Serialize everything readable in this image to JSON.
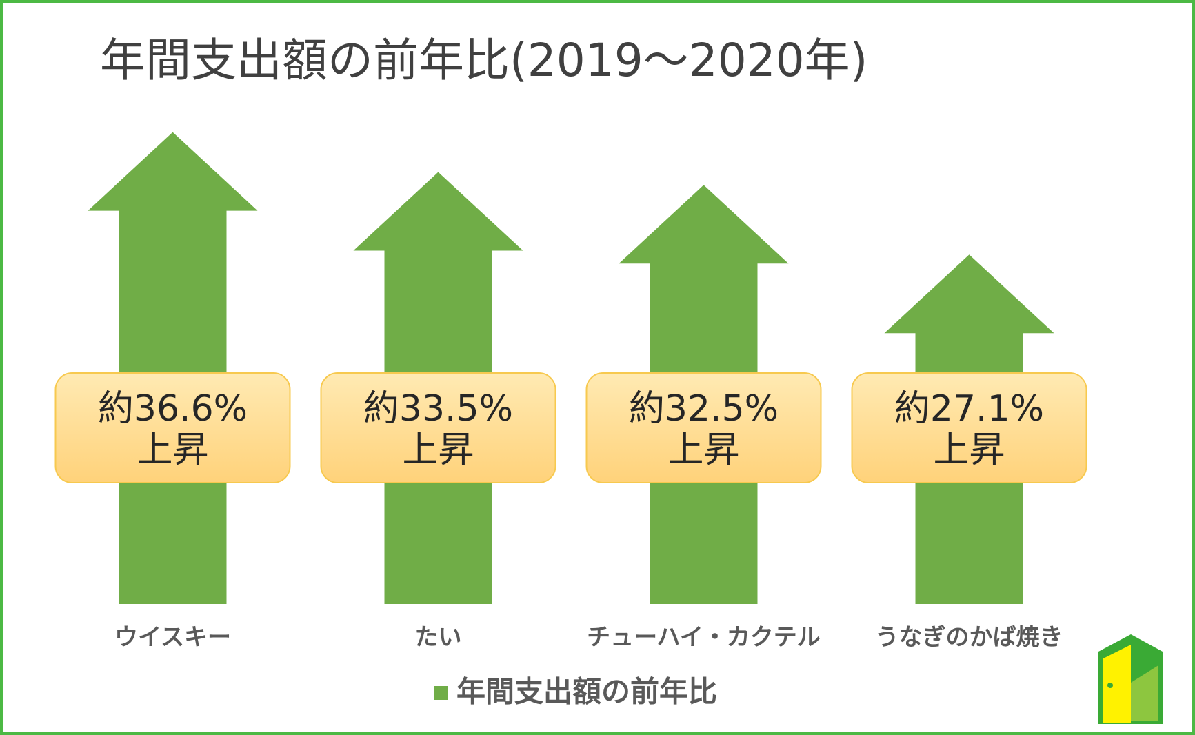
{
  "chart_data": {
    "type": "arrow",
    "title": "年間支出額の前年比(2019～2020年)",
    "categories": [
      "ウイスキー",
      "たい",
      "チューハイ・カクテル",
      "うなぎのかば焼き"
    ],
    "series": [
      {
        "name": "年間支出額の前年比",
        "color": "#70ad47",
        "values": [
          36.6,
          33.5,
          32.5,
          27.1
        ],
        "value_labels": [
          "約36.6%",
          "約33.5%",
          "約32.5%",
          "約27.1%"
        ]
      }
    ],
    "value_label_note": "上昇",
    "ylim": [
      0,
      40
    ],
    "legend": "bottom"
  }
}
